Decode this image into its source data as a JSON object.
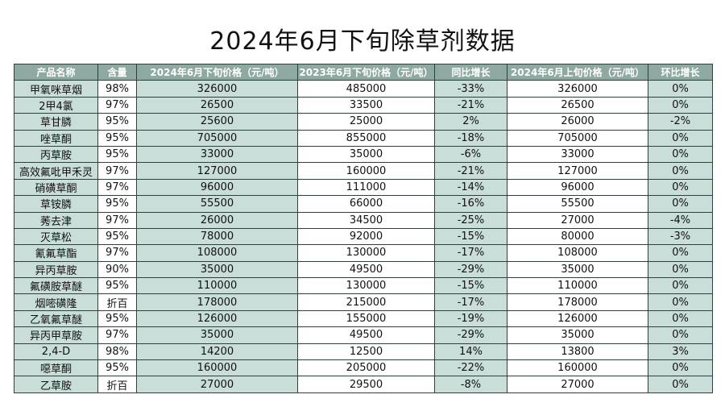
{
  "page": {
    "title": "2024年6月下旬除草剂数据"
  },
  "table": {
    "headers": [
      "产品名称",
      "含量",
      "2024年6月下旬价格（元/吨）",
      "2023年6月下旬价格（元/吨）",
      "同比增长",
      "2024年6月上旬价格（元/吨）",
      "环比增长"
    ],
    "rows": [
      [
        "甲氧咪草烟",
        "98%",
        "326000",
        "485000",
        "-33%",
        "326000",
        "0%"
      ],
      [
        "2甲4氯",
        "97%",
        "26500",
        "33500",
        "-21%",
        "26500",
        "0%"
      ],
      [
        "草甘膦",
        "95%",
        "25600",
        "25000",
        "2%",
        "26000",
        "-2%"
      ],
      [
        "唑草酮",
        "95%",
        "705000",
        "855000",
        "-18%",
        "705000",
        "0%"
      ],
      [
        "丙草胺",
        "95%",
        "33000",
        "35000",
        "-6%",
        "33000",
        "0%"
      ],
      [
        "高效氟吡甲禾灵",
        "97%",
        "127000",
        "160000",
        "-21%",
        "127000",
        "0%"
      ],
      [
        "硝磺草酮",
        "97%",
        "96000",
        "111000",
        "-14%",
        "96000",
        "0%"
      ],
      [
        "草铵膦",
        "95%",
        "55500",
        "66000",
        "-16%",
        "55500",
        "0%"
      ],
      [
        "莠去津",
        "97%",
        "26000",
        "34500",
        "-25%",
        "27000",
        "-4%"
      ],
      [
        "灭草松",
        "95%",
        "78000",
        "92000",
        "-15%",
        "80000",
        "-3%"
      ],
      [
        "氰氟草酯",
        "97%",
        "108000",
        "130000",
        "-17%",
        "108000",
        "0%"
      ],
      [
        "异丙草胺",
        "90%",
        "35000",
        "49500",
        "-29%",
        "35000",
        "0%"
      ],
      [
        "氟磺胺草醚",
        "95%",
        "110000",
        "130000",
        "-15%",
        "110000",
        "0%"
      ],
      [
        "烟嘧磺隆",
        "折百",
        "178000",
        "215000",
        "-17%",
        "178000",
        "0%"
      ],
      [
        "乙氧氟草醚",
        "95%",
        "126000",
        "155000",
        "-19%",
        "126000",
        "0%"
      ],
      [
        "异丙甲草胺",
        "97%",
        "35000",
        "49500",
        "-29%",
        "35000",
        "0%"
      ],
      [
        "2,4-D",
        "98%",
        "14200",
        "12500",
        "14%",
        "13800",
        "3%"
      ],
      [
        "噁草酮",
        "95%",
        "160000",
        "205000",
        "-22%",
        "160000",
        "0%"
      ],
      [
        "乙草胺",
        "折百",
        "27000",
        "29500",
        "-8%",
        "27000",
        "0%"
      ]
    ]
  }
}
